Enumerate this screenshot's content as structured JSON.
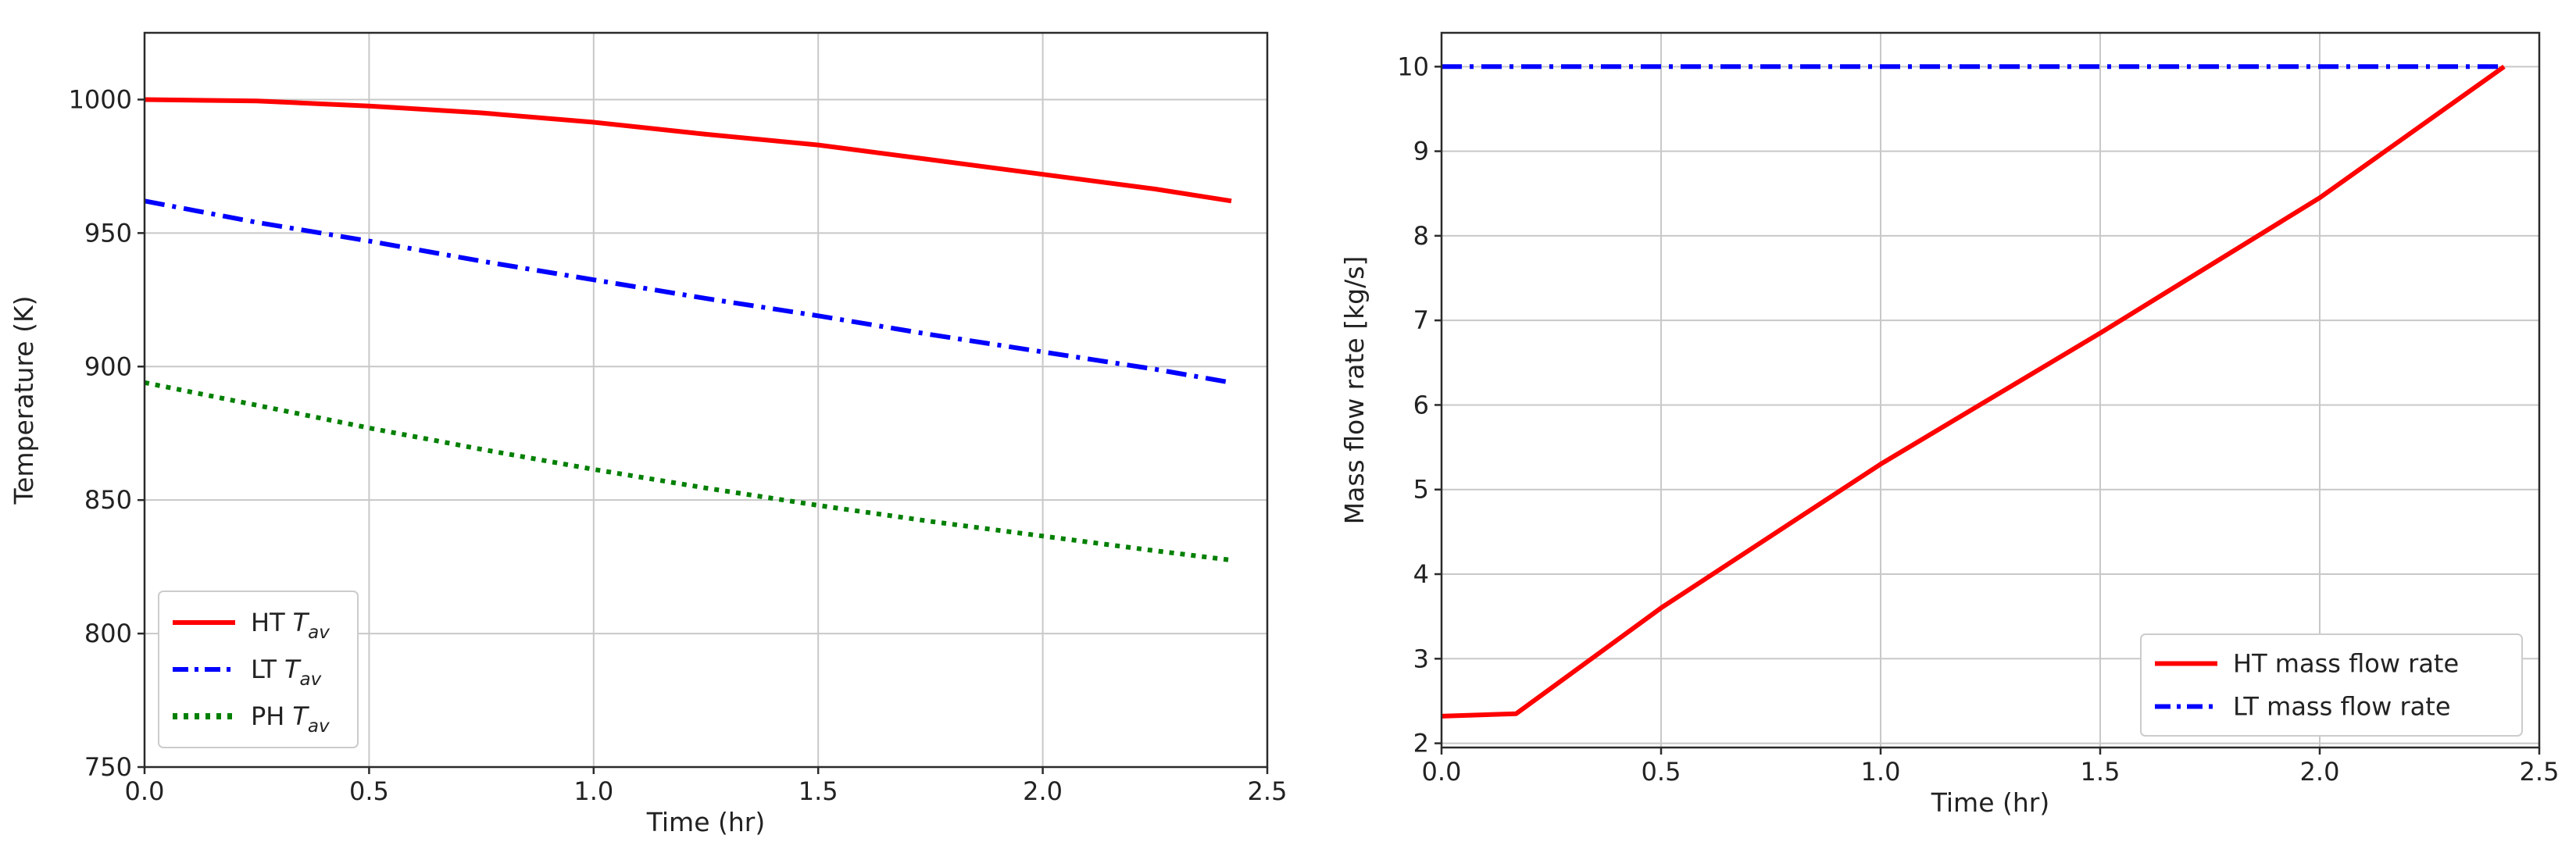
{
  "chart_data": [
    {
      "type": "line",
      "xlabel": "Time (hr)",
      "ylabel": "Temperature (K)",
      "xlim": [
        0,
        2.5
      ],
      "ylim": [
        750,
        1025
      ],
      "xticks": [
        "0.0",
        "0.5",
        "1.0",
        "1.5",
        "2.0",
        "2.5"
      ],
      "yticks": [
        "750",
        "800",
        "850",
        "900",
        "950",
        "1000"
      ],
      "grid": true,
      "legend_position": "bottom-left",
      "series": [
        {
          "name": "HT",
          "name_subscript": "av",
          "name_var": "T",
          "color": "#ff0000",
          "style": "solid",
          "x": [
            0,
            0.25,
            0.5,
            0.75,
            1.0,
            1.25,
            1.5,
            1.75,
            2.0,
            2.25,
            2.42
          ],
          "y": [
            1000,
            999.5,
            997.6,
            995,
            991.5,
            987,
            983,
            977.5,
            972,
            966.5,
            962
          ]
        },
        {
          "name": "LT",
          "name_subscript": "av",
          "name_var": "T",
          "color": "#0000ff",
          "style": "dashdot",
          "x": [
            0,
            0.25,
            0.5,
            0.75,
            1.0,
            1.25,
            1.5,
            1.75,
            2.0,
            2.25,
            2.42
          ],
          "y": [
            962,
            954,
            947,
            939.5,
            932.5,
            925.5,
            919,
            912,
            905.5,
            899,
            894
          ]
        },
        {
          "name": "PH",
          "name_subscript": "av",
          "name_var": "T",
          "color": "#008000",
          "style": "dotted",
          "x": [
            0,
            0.25,
            0.5,
            0.75,
            1.0,
            1.25,
            1.5,
            1.75,
            2.0,
            2.25,
            2.42
          ],
          "y": [
            894,
            885.5,
            877,
            869,
            861.5,
            854.5,
            848,
            842,
            836.5,
            831,
            827.5
          ]
        }
      ]
    },
    {
      "type": "line",
      "xlabel": "Time (hr)",
      "ylabel": "Mass flow rate [kg/s]",
      "xlim": [
        0,
        2.5
      ],
      "ylim": [
        1.95,
        10.4
      ],
      "xticks": [
        "0.0",
        "0.5",
        "1.0",
        "1.5",
        "2.0",
        "2.5"
      ],
      "yticks": [
        "2",
        "3",
        "4",
        "5",
        "6",
        "7",
        "8",
        "9",
        "10"
      ],
      "grid": true,
      "legend_position": "bottom-right",
      "series": [
        {
          "name": "HT mass flow rate",
          "color": "#ff0000",
          "style": "solid",
          "x": [
            0,
            0.17,
            0.5,
            1.0,
            1.5,
            2.0,
            2.42
          ],
          "y": [
            2.32,
            2.35,
            3.6,
            5.3,
            6.85,
            8.45,
            10.0
          ]
        },
        {
          "name": "LT mass flow rate",
          "color": "#0000ff",
          "style": "dashdot",
          "x": [
            0,
            2.42
          ],
          "y": [
            10.0,
            10.0
          ]
        }
      ]
    }
  ]
}
